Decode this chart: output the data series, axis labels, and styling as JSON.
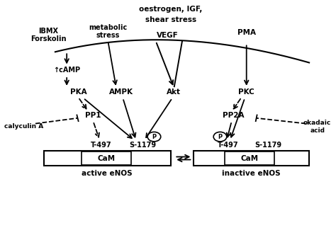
{
  "bg_color": "#ffffff",
  "fig_width": 4.74,
  "fig_height": 3.39,
  "dpi": 100,
  "xlim": [
    0,
    10
  ],
  "ylim": [
    0,
    10
  ],
  "top_label_1": "oestrogen, IGF,",
  "top_label_2": "shear stress",
  "ibmx_label": "IBMX\nForskolin",
  "metabolic_label": "metabolic\nstress",
  "vegf_label": "VEGF",
  "pma_label": "PMA",
  "camp_label": "↑cAMP",
  "pka_label": "PKA",
  "ampk_label": "AMPK",
  "akt_label": "Akt",
  "pkc_label": "PKC",
  "pp1_label": "PP1",
  "pp2a_label": "PP2A",
  "calyculin_label": "calyculin A",
  "okadaic_label": "okadaic\nacid",
  "t497_label": "T-497",
  "s1179_label": "S-1179",
  "cam_label": "CaM",
  "active_label": "active eNOS",
  "inactive_label": "inactive eNOS",
  "p_label": "P"
}
